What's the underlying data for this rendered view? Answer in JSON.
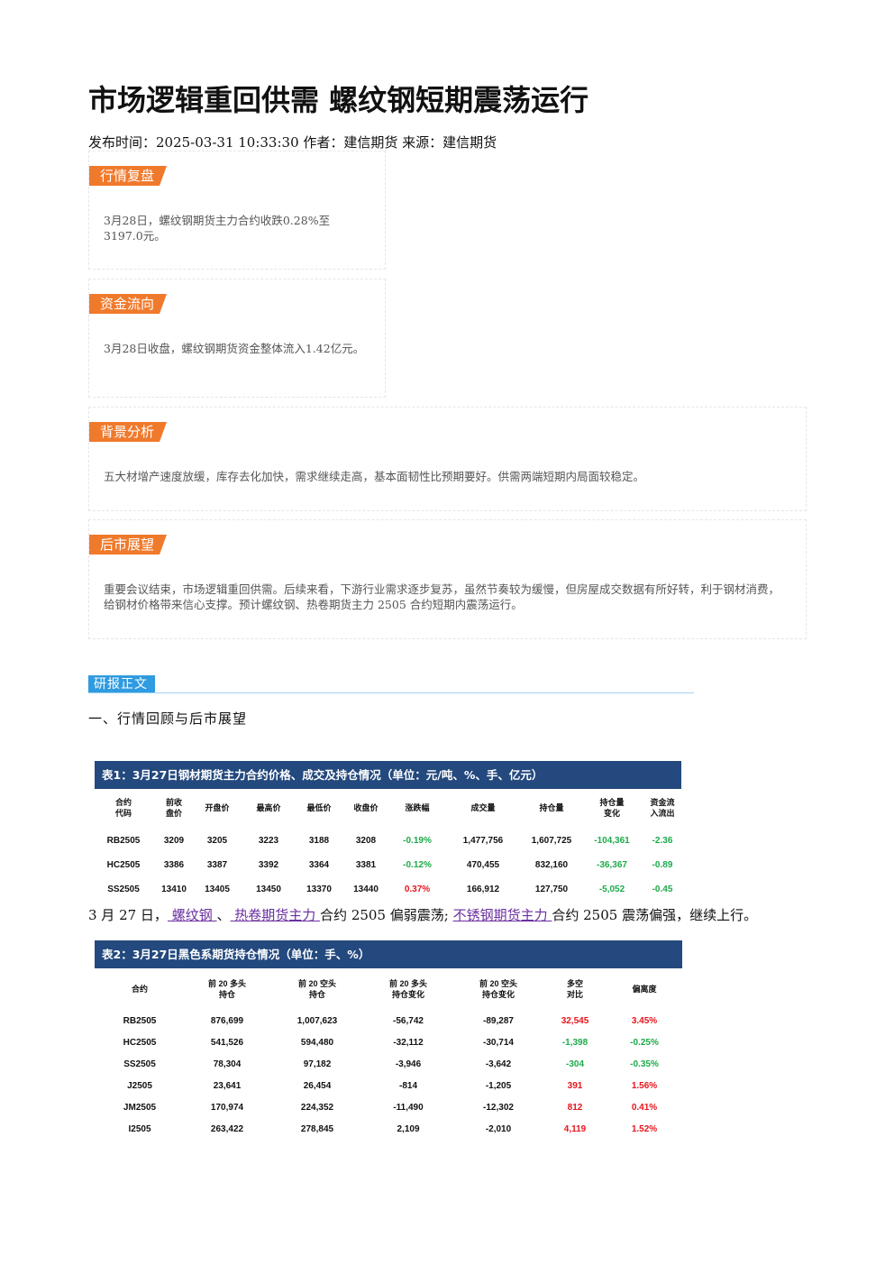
{
  "title": "市场逻辑重回供需 螺纹钢短期震荡运行",
  "meta": "发布时间：2025-03-31 10:33:30 作者：建信期货 来源：建信期货",
  "cards": [
    {
      "tag": "行情复盘",
      "text": "3月28日，螺纹钢期货主力合约收跌0.28%至3197.0元。"
    },
    {
      "tag": "资金流向",
      "text": "3月28日收盘，螺纹钢期货资金整体流入1.42亿元。"
    },
    {
      "tag": "背景分析",
      "text": "五大材增产速度放缓，库存去化加快，需求继续走高，基本面韧性比预期要好。供需两端短期内局面较稳定。"
    },
    {
      "tag": "后市展望",
      "text": "重要会议结束，市场逻辑重回供需。后续来看，下游行业需求逐步复苏，虽然节奏较为缓慢，但房屋成交数据有所好转，利于钢材消费，给钢材价格带来信心支撑。预计螺纹钢、热卷期货主力 2505 合约短期内震荡运行。"
    }
  ],
  "section": {
    "tag": "研报正文",
    "heading": "一、行情回顾与后市展望"
  },
  "table1": {
    "title": "表1：3月27日钢材期货主力合约价格、成交及持仓情况（单位：元/吨、%、手、亿元）",
    "headers": [
      "合约\n代码",
      "前收\n盘价",
      "开盘价",
      "最高价",
      "最低价",
      "收盘价",
      "涨跌幅",
      "成交量",
      "持仓量",
      "持仓量\n变化",
      "资金流\n入流出"
    ],
    "rows": [
      [
        "RB2505",
        "3209",
        "3205",
        "3223",
        "3188",
        "3208",
        "-0.19%",
        "1,477,756",
        "1,607,725",
        "-104,361",
        "-2.36"
      ],
      [
        "HC2505",
        "3386",
        "3387",
        "3392",
        "3364",
        "3381",
        "-0.12%",
        "470,455",
        "832,160",
        "-36,367",
        "-0.89"
      ],
      [
        "SS2505",
        "13410",
        "13405",
        "13450",
        "13370",
        "13440",
        "0.37%",
        "166,912",
        "127,750",
        "-5,052",
        "-0.45"
      ]
    ],
    "colors": [
      [
        "",
        "",
        "",
        "",
        "",
        "",
        "green",
        "",
        "",
        "green",
        "green"
      ],
      [
        "",
        "",
        "",
        "",
        "",
        "",
        "green",
        "",
        "",
        "green",
        "green"
      ],
      [
        "",
        "",
        "",
        "",
        "",
        "",
        "red",
        "",
        "",
        "green",
        "green"
      ]
    ]
  },
  "sentence": {
    "p1": "3 月 27 日，",
    "link1": " 螺纹钢 ",
    "p2": "、",
    "link2": " 热卷期货主力 ",
    "p3": "合约 2505 偏弱震荡; ",
    "link3": "不锈钢期货主力 ",
    "p4": "合约 2505 震荡偏强，继续上行。"
  },
  "table2": {
    "title": "表2：3月27日黑色系期货持仓情况（单位：手、%）",
    "headers": [
      "合约",
      "前 20 多头\n持仓",
      "前 20 空头\n持仓",
      "前 20 多头\n持仓变化",
      "前 20 空头\n持仓变化",
      "多空\n对比",
      "偏离度"
    ],
    "rows": [
      [
        "RB2505",
        "876,699",
        "1,007,623",
        "-56,742",
        "-89,287",
        "32,545",
        "3.45%"
      ],
      [
        "HC2505",
        "541,526",
        "594,480",
        "-32,112",
        "-30,714",
        "-1,398",
        "-0.25%"
      ],
      [
        "SS2505",
        "78,304",
        "97,182",
        "-3,946",
        "-3,642",
        "-304",
        "-0.35%"
      ],
      [
        "J2505",
        "23,641",
        "26,454",
        "-814",
        "-1,205",
        "391",
        "1.56%"
      ],
      [
        "JM2505",
        "170,974",
        "224,352",
        "-11,490",
        "-12,302",
        "812",
        "0.41%"
      ],
      [
        "I2505",
        "263,422",
        "278,845",
        "2,109",
        "-2,010",
        "4,119",
        "1.52%"
      ]
    ],
    "colors": [
      [
        "",
        "",
        "",
        "",
        "",
        "red",
        "red"
      ],
      [
        "",
        "",
        "",
        "",
        "",
        "green",
        "green"
      ],
      [
        "",
        "",
        "",
        "",
        "",
        "green",
        "green"
      ],
      [
        "",
        "",
        "",
        "",
        "",
        "red",
        "red"
      ],
      [
        "",
        "",
        "",
        "",
        "",
        "red",
        "red"
      ],
      [
        "",
        "",
        "",
        "",
        "",
        "red",
        "red"
      ]
    ]
  }
}
